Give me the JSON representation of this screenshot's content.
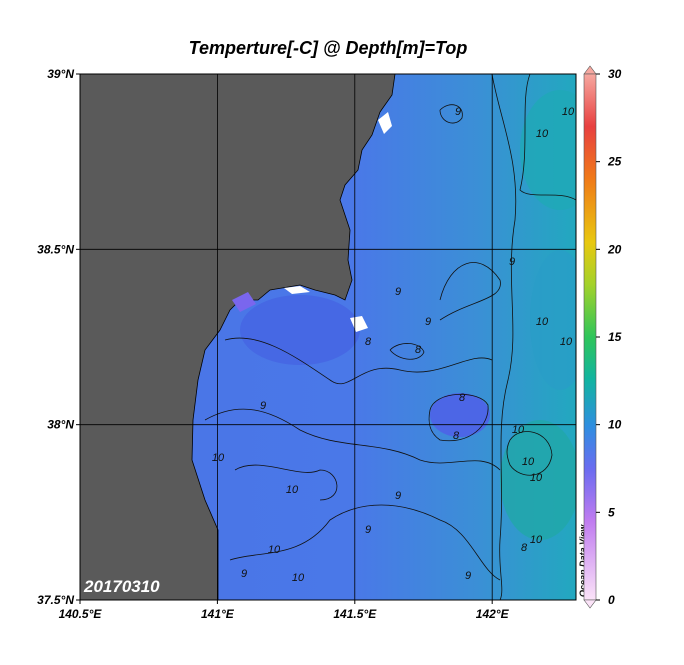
{
  "map": {
    "title": "Temperture[-C] @ Depth[m]=Top",
    "xlim": [
      140.5,
      142.305
    ],
    "ylim": [
      37.5,
      39
    ],
    "xticks": [
      {
        "value": 140.5,
        "label": "140.5°E"
      },
      {
        "value": 141,
        "label": "141°E"
      },
      {
        "value": 141.5,
        "label": "141.5°E"
      },
      {
        "value": 142,
        "label": "142°E"
      }
    ],
    "yticks": [
      {
        "value": 37.5,
        "label": "37.5°N"
      },
      {
        "value": 38,
        "label": "38°N"
      },
      {
        "value": 38.5,
        "label": "38.5°N"
      },
      {
        "value": 39,
        "label": "39°N"
      }
    ],
    "grid": true,
    "colorbar": {
      "lim": [
        0,
        30
      ],
      "ticks": [
        0,
        5,
        10,
        15,
        20,
        25,
        30
      ]
    },
    "date": "20170310",
    "credit": "Ocean Data View",
    "contour_labels": [
      "9",
      "10",
      "10",
      "9",
      "9",
      "9",
      "10",
      "10",
      "8",
      "8",
      "9",
      "8",
      "8",
      "10",
      "10",
      "10",
      "10",
      "9",
      "10",
      "9",
      "10",
      "9",
      "10",
      "9",
      "10",
      "8"
    ]
  }
}
